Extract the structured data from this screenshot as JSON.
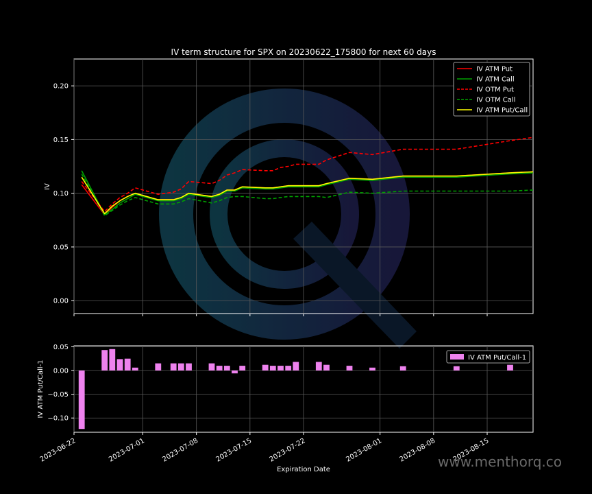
{
  "watermark": "www.menthorq.co",
  "chart_data": [
    {
      "type": "line",
      "title": "IV term structure for SPX on 20230622_175800 for next 60 days",
      "ylabel": "IV",
      "ylim": [
        -0.012,
        0.225
      ],
      "xlim": [
        "2023-06-22",
        "2023-08-21"
      ],
      "yticks": [
        0.0,
        0.05,
        0.1,
        0.15,
        0.2
      ],
      "ytick_labels": [
        "0.00",
        "0.05",
        "0.10",
        "0.15",
        "0.20"
      ],
      "grid": true,
      "legend_position": "top-right",
      "x": [
        "2023-06-23",
        "2023-06-26",
        "2023-06-27",
        "2023-06-28",
        "2023-06-29",
        "2023-06-30",
        "2023-07-03",
        "2023-07-05",
        "2023-07-06",
        "2023-07-07",
        "2023-07-10",
        "2023-07-11",
        "2023-07-12",
        "2023-07-13",
        "2023-07-14",
        "2023-07-17",
        "2023-07-18",
        "2023-07-19",
        "2023-07-20",
        "2023-07-21",
        "2023-07-24",
        "2023-07-25",
        "2023-07-28",
        "2023-07-31",
        "2023-08-04",
        "2023-08-11",
        "2023-08-18",
        "2023-08-21"
      ],
      "series": [
        {
          "name": "IV ATM Put",
          "color": "#ff0000",
          "dash": "solid",
          "values": [
            0.108,
            0.08,
            0.087,
            0.093,
            0.097,
            0.1,
            0.094,
            0.094,
            0.096,
            0.1,
            0.097,
            0.099,
            0.103,
            0.103,
            0.106,
            0.105,
            0.105,
            0.106,
            0.107,
            0.107,
            0.107,
            0.109,
            0.114,
            0.113,
            0.116,
            0.116,
            0.119,
            0.12
          ]
        },
        {
          "name": "IV ATM Call",
          "color": "#00a000",
          "dash": "solid",
          "values": [
            0.121,
            0.08,
            0.085,
            0.091,
            0.095,
            0.099,
            0.093,
            0.093,
            0.095,
            0.099,
            0.096,
            0.098,
            0.102,
            0.102,
            0.105,
            0.104,
            0.104,
            0.105,
            0.106,
            0.106,
            0.106,
            0.108,
            0.113,
            0.112,
            0.115,
            0.115,
            0.118,
            0.119
          ]
        },
        {
          "name": "IV OTM Put",
          "color": "#ff0000",
          "dash": "dashed",
          "values": [
            0.111,
            0.083,
            0.09,
            0.096,
            0.1,
            0.105,
            0.099,
            0.101,
            0.104,
            0.111,
            0.109,
            0.112,
            0.117,
            0.119,
            0.122,
            0.121,
            0.121,
            0.124,
            0.125,
            0.127,
            0.127,
            0.131,
            0.138,
            0.136,
            0.141,
            0.141,
            0.149,
            0.152
          ]
        },
        {
          "name": "IV OTM Call",
          "color": "#00a000",
          "dash": "dashed",
          "values": [
            0.118,
            0.079,
            0.084,
            0.089,
            0.093,
            0.096,
            0.09,
            0.09,
            0.092,
            0.095,
            0.091,
            0.093,
            0.096,
            0.097,
            0.097,
            0.095,
            0.095,
            0.096,
            0.097,
            0.097,
            0.097,
            0.096,
            0.101,
            0.1,
            0.102,
            0.102,
            0.102,
            0.103
          ]
        },
        {
          "name": "IV ATM Put/Call",
          "color": "#ffff00",
          "dash": "solid",
          "values": [
            0.115,
            0.081,
            0.088,
            0.093,
            0.097,
            0.1,
            0.094,
            0.094,
            0.096,
            0.1,
            0.097,
            0.099,
            0.103,
            0.103,
            0.106,
            0.105,
            0.105,
            0.106,
            0.107,
            0.107,
            0.107,
            0.109,
            0.114,
            0.113,
            0.116,
            0.116,
            0.119,
            0.12
          ]
        }
      ]
    },
    {
      "type": "bar",
      "ylabel": "IV ATM Put/Call-1",
      "xlabel": "Expiration Date",
      "ylim": [
        -0.13,
        0.052
      ],
      "xlim": [
        "2023-06-22",
        "2023-08-21"
      ],
      "yticks": [
        0.05,
        0.0,
        -0.05,
        -0.1
      ],
      "ytick_labels": [
        "0.05",
        "0.00",
        "−0.05",
        "−0.10"
      ],
      "xticks": [
        "2023-06-22",
        "2023-07-01",
        "2023-07-08",
        "2023-07-15",
        "2023-07-22",
        "2023-08-01",
        "2023-08-08",
        "2023-08-15"
      ],
      "grid": true,
      "legend_position": "top-right",
      "series": [
        {
          "name": "IV ATM Put/Call-1",
          "color": "#ee82ee",
          "x": [
            "2023-06-23",
            "2023-06-26",
            "2023-06-27",
            "2023-06-28",
            "2023-06-29",
            "2023-06-30",
            "2023-07-03",
            "2023-07-05",
            "2023-07-06",
            "2023-07-07",
            "2023-07-10",
            "2023-07-11",
            "2023-07-12",
            "2023-07-13",
            "2023-07-14",
            "2023-07-17",
            "2023-07-18",
            "2023-07-19",
            "2023-07-20",
            "2023-07-21",
            "2023-07-24",
            "2023-07-25",
            "2023-07-28",
            "2023-07-31",
            "2023-08-04",
            "2023-08-11",
            "2023-08-18"
          ],
          "values": [
            -0.123,
            0.043,
            0.045,
            0.024,
            0.025,
            0.006,
            0.015,
            0.015,
            0.015,
            0.015,
            0.015,
            0.01,
            0.01,
            -0.006,
            0.01,
            0.012,
            0.01,
            0.01,
            0.01,
            0.018,
            0.018,
            0.012,
            0.01,
            0.006,
            0.009,
            0.009,
            0.012
          ]
        }
      ]
    }
  ]
}
